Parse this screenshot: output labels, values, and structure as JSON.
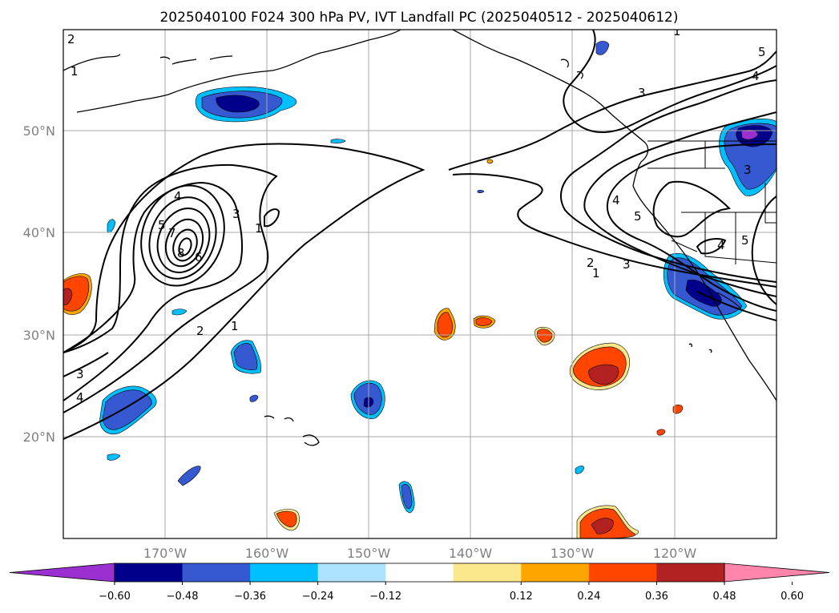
{
  "chart_data": {
    "type": "contour-map",
    "title": "2025040100 F024 300 hPa PV, IVT Landfall PC (2025040512 - 2025040612)",
    "x_ticks": [
      "170°W",
      "160°W",
      "150°W",
      "140°W",
      "130°W",
      "120°W"
    ],
    "y_ticks": [
      "20°N",
      "30°N",
      "40°N",
      "50°N"
    ],
    "lon_range": [
      -180,
      -110
    ],
    "lat_range": [
      10,
      60
    ],
    "grid": true,
    "colorbar": {
      "orientation": "horizontal",
      "extend": "both",
      "ticks": [
        "−0.60",
        "−0.48",
        "−0.36",
        "−0.24",
        "−0.12",
        "0.12",
        "0.24",
        "0.36",
        "0.48",
        "0.60"
      ],
      "colors": [
        "#9b30d0",
        "#00008b",
        "#3658d0",
        "#00bfff",
        "#aee3ff",
        "#ffffff",
        "#fce88c",
        "#ffa500",
        "#ff4500",
        "#b22222",
        "#ff85ab"
      ]
    },
    "contour_labels": [
      "2",
      "1",
      "1",
      "4",
      "5",
      "7",
      "8",
      "6",
      "3",
      "1",
      "2",
      "1",
      "3",
      "4",
      "3",
      "4",
      "5",
      "2",
      "3",
      "1",
      "4",
      "5",
      "3",
      "4",
      "5"
    ]
  }
}
